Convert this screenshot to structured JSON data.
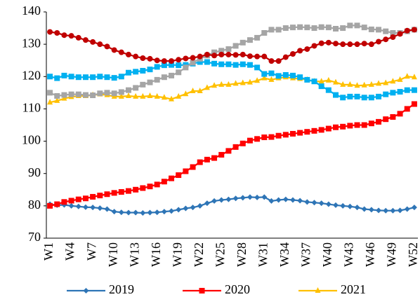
{
  "chart_data": {
    "type": "line",
    "categories": [
      "W1",
      null,
      null,
      "W4",
      null,
      null,
      "W7",
      null,
      null,
      "W10",
      null,
      null,
      "W13",
      null,
      null,
      "W16",
      null,
      null,
      "W19",
      null,
      null,
      "W22",
      null,
      null,
      "W25",
      null,
      null,
      "W28",
      null,
      null,
      "W31",
      null,
      null,
      "W34",
      null,
      null,
      "W37",
      null,
      null,
      "W40",
      null,
      null,
      "W43",
      null,
      null,
      "W46",
      null,
      null,
      "W49",
      null,
      null,
      "W52"
    ],
    "ylim": [
      70,
      140
    ],
    "yticks": [
      70,
      80,
      90,
      100,
      110,
      120,
      130,
      140
    ],
    "grid": false,
    "legend": "bottom",
    "series": [
      {
        "name": "2019",
        "color": "#2e75b6",
        "marker": "diamond",
        "values": [
          80.5,
          80.2,
          80.3,
          80,
          79.8,
          79.6,
          79.5,
          79.3,
          79,
          78.2,
          78,
          77.9,
          77.9,
          77.8,
          77.9,
          78,
          78.2,
          78.4,
          78.8,
          79.2,
          79.5,
          80,
          80.8,
          81.5,
          81.8,
          82,
          82.3,
          82.5,
          82.7,
          82.6,
          82.7,
          81.5,
          81.8,
          82,
          81.8,
          81.6,
          81.2,
          81,
          80.8,
          80.5,
          80.2,
          80,
          79.8,
          79.5,
          79,
          78.8,
          78.6,
          78.5,
          78.5,
          78.6,
          79,
          79.5
        ]
      },
      {
        "name": "2020",
        "color": "#ff0000",
        "marker": "square",
        "values": [
          80,
          80.5,
          81.2,
          81.6,
          82,
          82.3,
          82.8,
          83.2,
          83.6,
          84,
          84.3,
          84.6,
          85,
          85.5,
          86,
          86.6,
          87.5,
          88.5,
          89.5,
          90.7,
          92,
          93.5,
          94.3,
          94.8,
          95.8,
          97,
          98.2,
          99.3,
          100.2,
          100.7,
          101.2,
          101.3,
          101.7,
          102,
          102.3,
          102.6,
          102.9,
          103.2,
          103.5,
          103.9,
          104.3,
          104.5,
          104.8,
          105,
          105,
          105.5,
          106,
          106.8,
          107.5,
          108.5,
          110,
          111.5
        ]
      },
      {
        "name": "2021",
        "color": "#ffc000",
        "marker": "triangle",
        "values": [
          112,
          112.5,
          113.2,
          113.7,
          114,
          114,
          114.3,
          114.5,
          114.3,
          113.8,
          113.8,
          114,
          113.8,
          113.8,
          114,
          113.8,
          113.5,
          113,
          113.8,
          114.6,
          115.5,
          115.5,
          116.5,
          117.2,
          117.5,
          117.5,
          117.8,
          118,
          118.2,
          118.7,
          119.5,
          119,
          119.5,
          119.8,
          119.5,
          119.3,
          119,
          118.5,
          118.5,
          118.8,
          118.2,
          117.5,
          117.5,
          117.2,
          117.3,
          117.5,
          117.8,
          118,
          118.5,
          119,
          120,
          119.8
        ]
      },
      {
        "color": "#00b0f0",
        "marker": "square",
        "values": [
          120,
          119.5,
          120.3,
          120,
          119.8,
          119.8,
          119.8,
          120,
          119.8,
          119.6,
          120,
          121.2,
          121.5,
          121.8,
          122.2,
          123,
          123.5,
          123.6,
          123.5,
          123.6,
          124,
          124.5,
          124.5,
          124,
          123.8,
          123.8,
          123.6,
          123.8,
          123.6,
          122.8,
          120.8,
          121,
          120.2,
          120.5,
          120.3,
          119.8,
          119,
          118.5,
          117,
          115.8,
          114.3,
          113.5,
          113.8,
          113.8,
          113.5,
          113.5,
          113.8,
          114.5,
          115,
          115.3,
          115.8,
          115.8
        ]
      },
      {
        "color": "#a5a5a5",
        "marker": "square",
        "values": [
          115,
          114,
          114.3,
          114.5,
          114.5,
          114.3,
          114.2,
          114.8,
          115,
          114.8,
          115.2,
          115.8,
          116.5,
          117.5,
          118.2,
          119,
          119.8,
          120.3,
          121.3,
          122.8,
          124.3,
          125.5,
          126.5,
          127.5,
          128,
          128.5,
          129.5,
          130.5,
          131.3,
          132,
          133.5,
          134.5,
          134.5,
          135,
          135.2,
          135.3,
          135.2,
          135,
          135.3,
          135.2,
          134.8,
          135,
          135.8,
          135.8,
          135.2,
          134.6,
          134.5,
          134,
          133.5,
          133.5,
          134,
          134.5
        ]
      },
      {
        "color": "#c00000",
        "marker": "circle",
        "values": [
          133.8,
          133.5,
          132.8,
          132.6,
          132,
          131.3,
          130.7,
          130,
          129.3,
          128.2,
          127.5,
          126.8,
          126.2,
          125.7,
          125.5,
          125,
          124.8,
          124.8,
          125.2,
          125.6,
          125.8,
          126.2,
          126.8,
          126.5,
          126.8,
          126.8,
          126.7,
          126.8,
          126.3,
          126.2,
          126.2,
          124.8,
          124.8,
          126,
          127,
          128,
          128.5,
          129.5,
          130.3,
          130.5,
          130.2,
          130,
          130,
          130,
          130.2,
          130,
          130.8,
          131.5,
          132.2,
          133.2,
          134.2,
          134.5
        ]
      }
    ]
  }
}
